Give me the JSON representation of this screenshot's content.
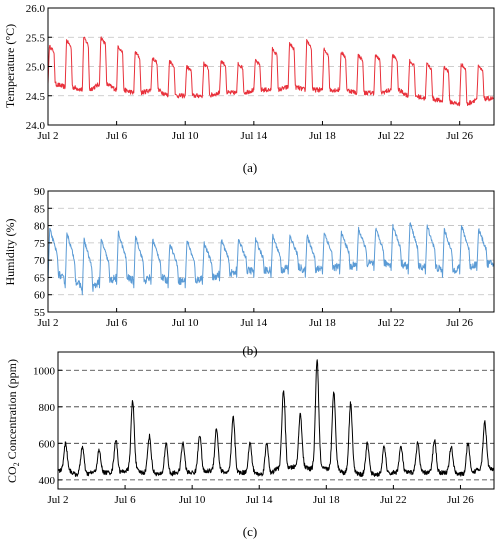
{
  "panels": [
    {
      "label": "(a)"
    },
    {
      "label": "(b)"
    },
    {
      "label": "(c)"
    }
  ],
  "chart_data": [
    {
      "type": "line",
      "title": "",
      "xlabel": "",
      "ylabel": "Temperature (°C)",
      "xlim": [
        "2023-07-02",
        "2023-07-28"
      ],
      "xticks": [
        "Jul 2",
        "Jul 6",
        "Jul 10",
        "Jul 14",
        "Jul 18",
        "Jul 22",
        "Jul 26"
      ],
      "ylim": [
        24.0,
        26.0
      ],
      "yticks": [
        "24.0",
        "24.5",
        "25.0",
        "25.5",
        "26.0"
      ],
      "grid": "horizontal dashed at 24.5, 25.0, 25.5",
      "color": "#e8303a",
      "series": [
        {
          "name": "",
          "x": [
            "2023-07-02",
            "2023-07-03",
            "2023-07-04",
            "2023-07-05",
            "2023-07-06",
            "2023-07-07",
            "2023-07-08",
            "2023-07-09",
            "2023-07-10",
            "2023-07-11",
            "2023-07-12",
            "2023-07-13",
            "2023-07-14",
            "2023-07-15",
            "2023-07-16",
            "2023-07-17",
            "2023-07-18",
            "2023-07-19",
            "2023-07-20",
            "2023-07-21",
            "2023-07-22",
            "2023-07-23",
            "2023-07-24",
            "2023-07-25",
            "2023-07-26",
            "2023-07-27"
          ],
          "daily_peak": [
            25.35,
            25.45,
            25.5,
            25.5,
            25.35,
            25.25,
            25.15,
            25.1,
            25.0,
            25.05,
            25.1,
            25.05,
            25.1,
            25.3,
            25.4,
            25.45,
            25.3,
            25.25,
            25.2,
            25.2,
            25.2,
            25.1,
            25.05,
            25.0,
            25.05,
            25.0
          ],
          "daily_trough": [
            24.7,
            24.65,
            24.6,
            24.7,
            24.6,
            24.55,
            24.6,
            24.5,
            24.5,
            24.5,
            24.55,
            24.55,
            24.6,
            24.6,
            24.65,
            24.6,
            24.6,
            24.6,
            24.55,
            24.55,
            24.6,
            24.5,
            24.45,
            24.4,
            24.35,
            24.45
          ]
        }
      ]
    },
    {
      "type": "line",
      "title": "",
      "xlabel": "",
      "ylabel": "Humidity (%)",
      "xlim": [
        "2023-07-02",
        "2023-07-28"
      ],
      "xticks": [
        "Jul 2",
        "Jul 6",
        "Jul 10",
        "Jul 14",
        "Jul 18",
        "Jul 22",
        "Jul 26"
      ],
      "ylim": [
        55,
        90
      ],
      "yticks": [
        "55",
        "60",
        "65",
        "70",
        "75",
        "80",
        "85",
        "90"
      ],
      "grid": "horizontal dashed at 60, 65, 70, 75, 80, 85",
      "color": "#5b9bd5",
      "series": [
        {
          "name": "",
          "x": [
            "2023-07-02",
            "2023-07-03",
            "2023-07-04",
            "2023-07-05",
            "2023-07-06",
            "2023-07-07",
            "2023-07-08",
            "2023-07-09",
            "2023-07-10",
            "2023-07-11",
            "2023-07-12",
            "2023-07-13",
            "2023-07-14",
            "2023-07-15",
            "2023-07-16",
            "2023-07-17",
            "2023-07-18",
            "2023-07-19",
            "2023-07-20",
            "2023-07-21",
            "2023-07-22",
            "2023-07-23",
            "2023-07-24",
            "2023-07-25",
            "2023-07-26",
            "2023-07-27"
          ],
          "daily_peak": [
            79,
            78,
            76,
            76,
            78,
            77,
            76,
            75,
            76,
            75,
            76,
            76,
            76,
            77,
            77,
            77,
            78,
            78,
            79,
            79,
            80,
            81,
            80,
            79,
            80,
            79
          ],
          "daily_trough": [
            64,
            62,
            60,
            62,
            63,
            62,
            63,
            62,
            62,
            63,
            64,
            65,
            65,
            65,
            66,
            65,
            66,
            66,
            67,
            67,
            67,
            66,
            66,
            65,
            66,
            67
          ]
        }
      ]
    },
    {
      "type": "line",
      "title": "",
      "xlabel": "",
      "ylabel": "CO2 Concentration (ppm)",
      "xlim": [
        "2023-07-02",
        "2023-07-28"
      ],
      "xticks": [
        "Jul 2",
        "Jul 6",
        "Jul 10",
        "Jul 14",
        "Jul 18",
        "Jul 22",
        "Jul 26"
      ],
      "ylim": [
        350,
        1100
      ],
      "yticks": [
        "400",
        "600",
        "800",
        "1000"
      ],
      "grid": "horizontal dashed at 400, 600, 800, 1000",
      "color": "#000000",
      "series": [
        {
          "name": "",
          "x": [
            "2023-07-02",
            "2023-07-03",
            "2023-07-04",
            "2023-07-05",
            "2023-07-06",
            "2023-07-07",
            "2023-07-08",
            "2023-07-09",
            "2023-07-10",
            "2023-07-11",
            "2023-07-12",
            "2023-07-13",
            "2023-07-14",
            "2023-07-15",
            "2023-07-16",
            "2023-07-17",
            "2023-07-18",
            "2023-07-19",
            "2023-07-20",
            "2023-07-21",
            "2023-07-22",
            "2023-07-23",
            "2023-07-24",
            "2023-07-25",
            "2023-07-26",
            "2023-07-27"
          ],
          "daily_peak": [
            600,
            580,
            560,
            620,
            830,
            640,
            600,
            600,
            650,
            680,
            740,
            600,
            600,
            890,
            760,
            1050,
            880,
            820,
            600,
            580,
            580,
            600,
            620,
            580,
            600,
            720
          ],
          "daily_trough": [
            450,
            430,
            440,
            440,
            450,
            440,
            430,
            440,
            440,
            450,
            440,
            440,
            430,
            460,
            470,
            460,
            460,
            440,
            430,
            430,
            440,
            440,
            440,
            440,
            430,
            460
          ]
        }
      ]
    }
  ]
}
